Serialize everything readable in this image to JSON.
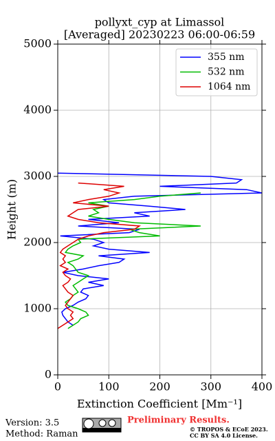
{
  "chart_data": {
    "type": "line",
    "title": "pollyxt_cyp at Limassol",
    "subtitle": "[Averaged] 20230223 06:00-06:59",
    "xlabel": "Extinction Coefficient [Mm⁻¹]",
    "ylabel": "Height (m)",
    "xlim": [
      0,
      400
    ],
    "xticks": [
      0,
      100,
      200,
      300,
      400
    ],
    "ylim": [
      0,
      5000
    ],
    "yticks": [
      0,
      1000,
      2000,
      3000,
      4000,
      5000
    ],
    "grid": true,
    "legend": "upper right",
    "series": [
      {
        "name": "355 nm",
        "color": "#0000ff",
        "y": [
          750,
          800,
          850,
          900,
          950,
          1000,
          1050,
          1100,
          1150,
          1200,
          1250,
          1300,
          1350,
          1400,
          1450,
          1500,
          1550,
          1600,
          1650,
          1700,
          1750,
          1800,
          1850,
          1900,
          1950,
          2000,
          2050,
          2100,
          2150,
          2200,
          2250,
          2300,
          2350,
          2400,
          2450,
          2500,
          2550,
          2600,
          2650,
          2700,
          2750,
          2800,
          2850,
          2900,
          2950,
          3000,
          3050
        ],
        "values": [
          30,
          20,
          15,
          10,
          8,
          15,
          30,
          40,
          55,
          60,
          45,
          50,
          90,
          60,
          100,
          40,
          10,
          50,
          80,
          120,
          130,
          80,
          180,
          100,
          70,
          90,
          70,
          5,
          140,
          160,
          40,
          120,
          60,
          180,
          150,
          250,
          180,
          100,
          90,
          150,
          400,
          370,
          200,
          350,
          360,
          300,
          0
        ]
      },
      {
        "name": "532 nm",
        "color": "#00bb00",
        "y": [
          700,
          750,
          800,
          850,
          900,
          950,
          1000,
          1050,
          1100,
          1150,
          1200,
          1250,
          1300,
          1350,
          1400,
          1450,
          1500,
          1550,
          1600,
          1650,
          1700,
          1750,
          1800,
          1850,
          1900,
          1950,
          2000,
          2050,
          2100,
          2150,
          2200,
          2250,
          2300,
          2350,
          2400,
          2450,
          2500,
          2550,
          2600,
          2650,
          2700,
          2750
        ],
        "values": [
          20,
          30,
          40,
          45,
          60,
          55,
          40,
          20,
          15,
          25,
          30,
          40,
          35,
          30,
          40,
          50,
          60,
          40,
          35,
          30,
          20,
          40,
          50,
          15,
          20,
          30,
          45,
          40,
          200,
          160,
          140,
          280,
          150,
          100,
          60,
          80,
          70,
          100,
          60,
          150,
          200,
          280
        ]
      },
      {
        "name": "1064 nm",
        "color": "#dd0000",
        "y": [
          700,
          750,
          800,
          850,
          900,
          950,
          1000,
          1050,
          1100,
          1150,
          1200,
          1250,
          1300,
          1350,
          1400,
          1450,
          1500,
          1550,
          1600,
          1650,
          1700,
          1750,
          1800,
          1850,
          1900,
          1950,
          2000,
          2050,
          2100,
          2150,
          2200,
          2250,
          2300,
          2350,
          2400,
          2450,
          2500,
          2550,
          2600,
          2650,
          2700,
          2750,
          2800,
          2850,
          2900
        ],
        "values": [
          0,
          10,
          20,
          30,
          25,
          30,
          20,
          15,
          20,
          25,
          30,
          20,
          15,
          10,
          20,
          25,
          15,
          10,
          20,
          5,
          15,
          10,
          15,
          5,
          10,
          20,
          30,
          40,
          60,
          90,
          150,
          160,
          80,
          40,
          20,
          30,
          40,
          100,
          30,
          60,
          100,
          120,
          90,
          130,
          40
        ]
      }
    ]
  },
  "footer": {
    "version": "Version: 3.5",
    "method": "Method: Raman",
    "status": "Preliminary Results.",
    "copyright": "© TROPOS & ECoE 2023.",
    "license": "CC BY SA 4.0 License."
  }
}
